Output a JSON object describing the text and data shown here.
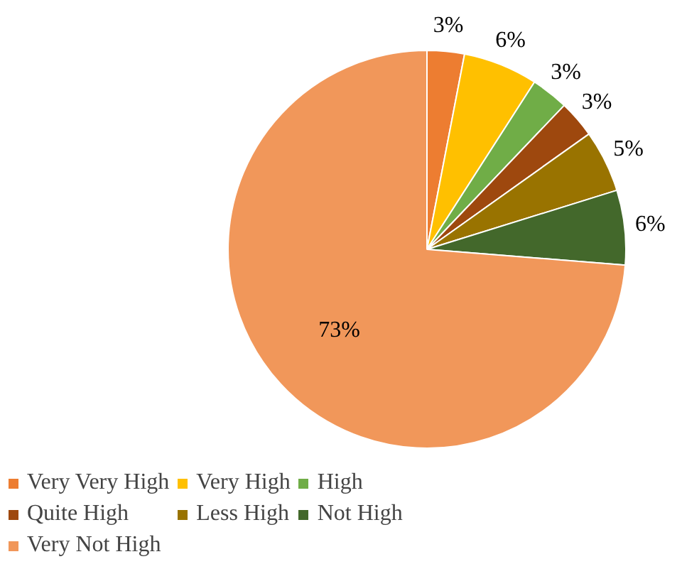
{
  "chart_data": {
    "type": "pie",
    "categories": [
      "Very Very High",
      "Very High",
      "High",
      "Quite High",
      "Less High",
      "Not High",
      "Very Not High"
    ],
    "values": [
      3,
      6,
      3,
      3,
      5,
      6,
      73
    ],
    "colors": [
      "#ed7d31",
      "#ffc000",
      "#70ad47",
      "#9e480e",
      "#997300",
      "#43682b",
      "#f1975a"
    ],
    "value_labels": [
      "3%",
      "6%",
      "3%",
      "3%",
      "5%",
      "6%",
      "73%"
    ],
    "legend": "bottom"
  }
}
